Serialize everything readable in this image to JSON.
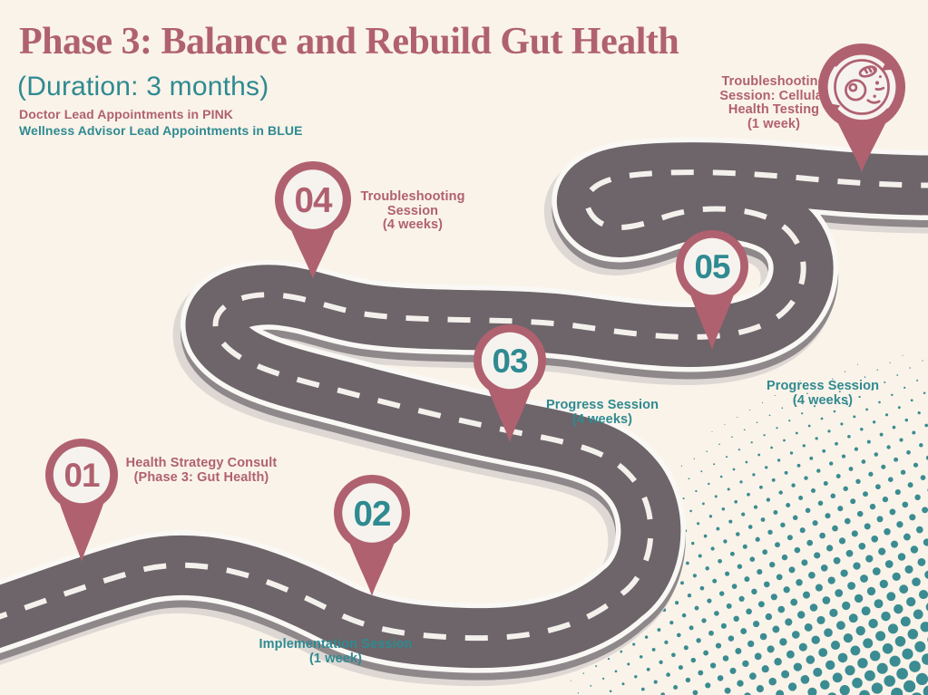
{
  "header": {
    "title": "Phase 3: Balance and Rebuild Gut Health",
    "subtitle": "(Duration: 3 months)",
    "legend": [
      {
        "id": "doctor",
        "text": "Doctor Lead Appointments in PINK"
      },
      {
        "id": "advisor",
        "text": "Wellness Advisor Lead Appointments in BLUE"
      }
    ]
  },
  "milestones": [
    {
      "id": "01",
      "number": "01",
      "lead": "doctor",
      "icon": null,
      "label_lines": [
        "Health Strategy Consult",
        "(Phase 3: Gut Health)"
      ]
    },
    {
      "id": "02",
      "number": "02",
      "lead": "advisor",
      "icon": null,
      "label_lines": [
        "Implementation Session",
        "(1 week)"
      ]
    },
    {
      "id": "03",
      "number": "03",
      "lead": "advisor",
      "icon": null,
      "label_lines": [
        "Progress Session",
        "(4 weeks)"
      ]
    },
    {
      "id": "04",
      "number": "04",
      "lead": "doctor",
      "icon": null,
      "label_lines": [
        "Troubleshooting",
        "Session",
        "(4 weeks)"
      ]
    },
    {
      "id": "05",
      "number": "05",
      "lead": "advisor",
      "icon": null,
      "label_lines": [
        "Progress Session",
        "(4 weeks)"
      ]
    },
    {
      "id": "cellular",
      "number": null,
      "lead": "doctor",
      "icon": "cell-icon",
      "label_lines": [
        "Troubleshooting",
        "Session: Cellular",
        "Health Testing",
        "(1 week)"
      ]
    }
  ],
  "colors": {
    "background": "#faf3e9",
    "pink": "#b06170",
    "teal": "#2f8a91",
    "road": "#6d6569",
    "road_edge": "#faf8f5",
    "road_side": "#8e888b",
    "road_shadow": "#ddd8d4",
    "center_dash": "#f4f1ed",
    "halftone_dots": "#3a8c92",
    "pin_inner": "#f6f3ef"
  }
}
